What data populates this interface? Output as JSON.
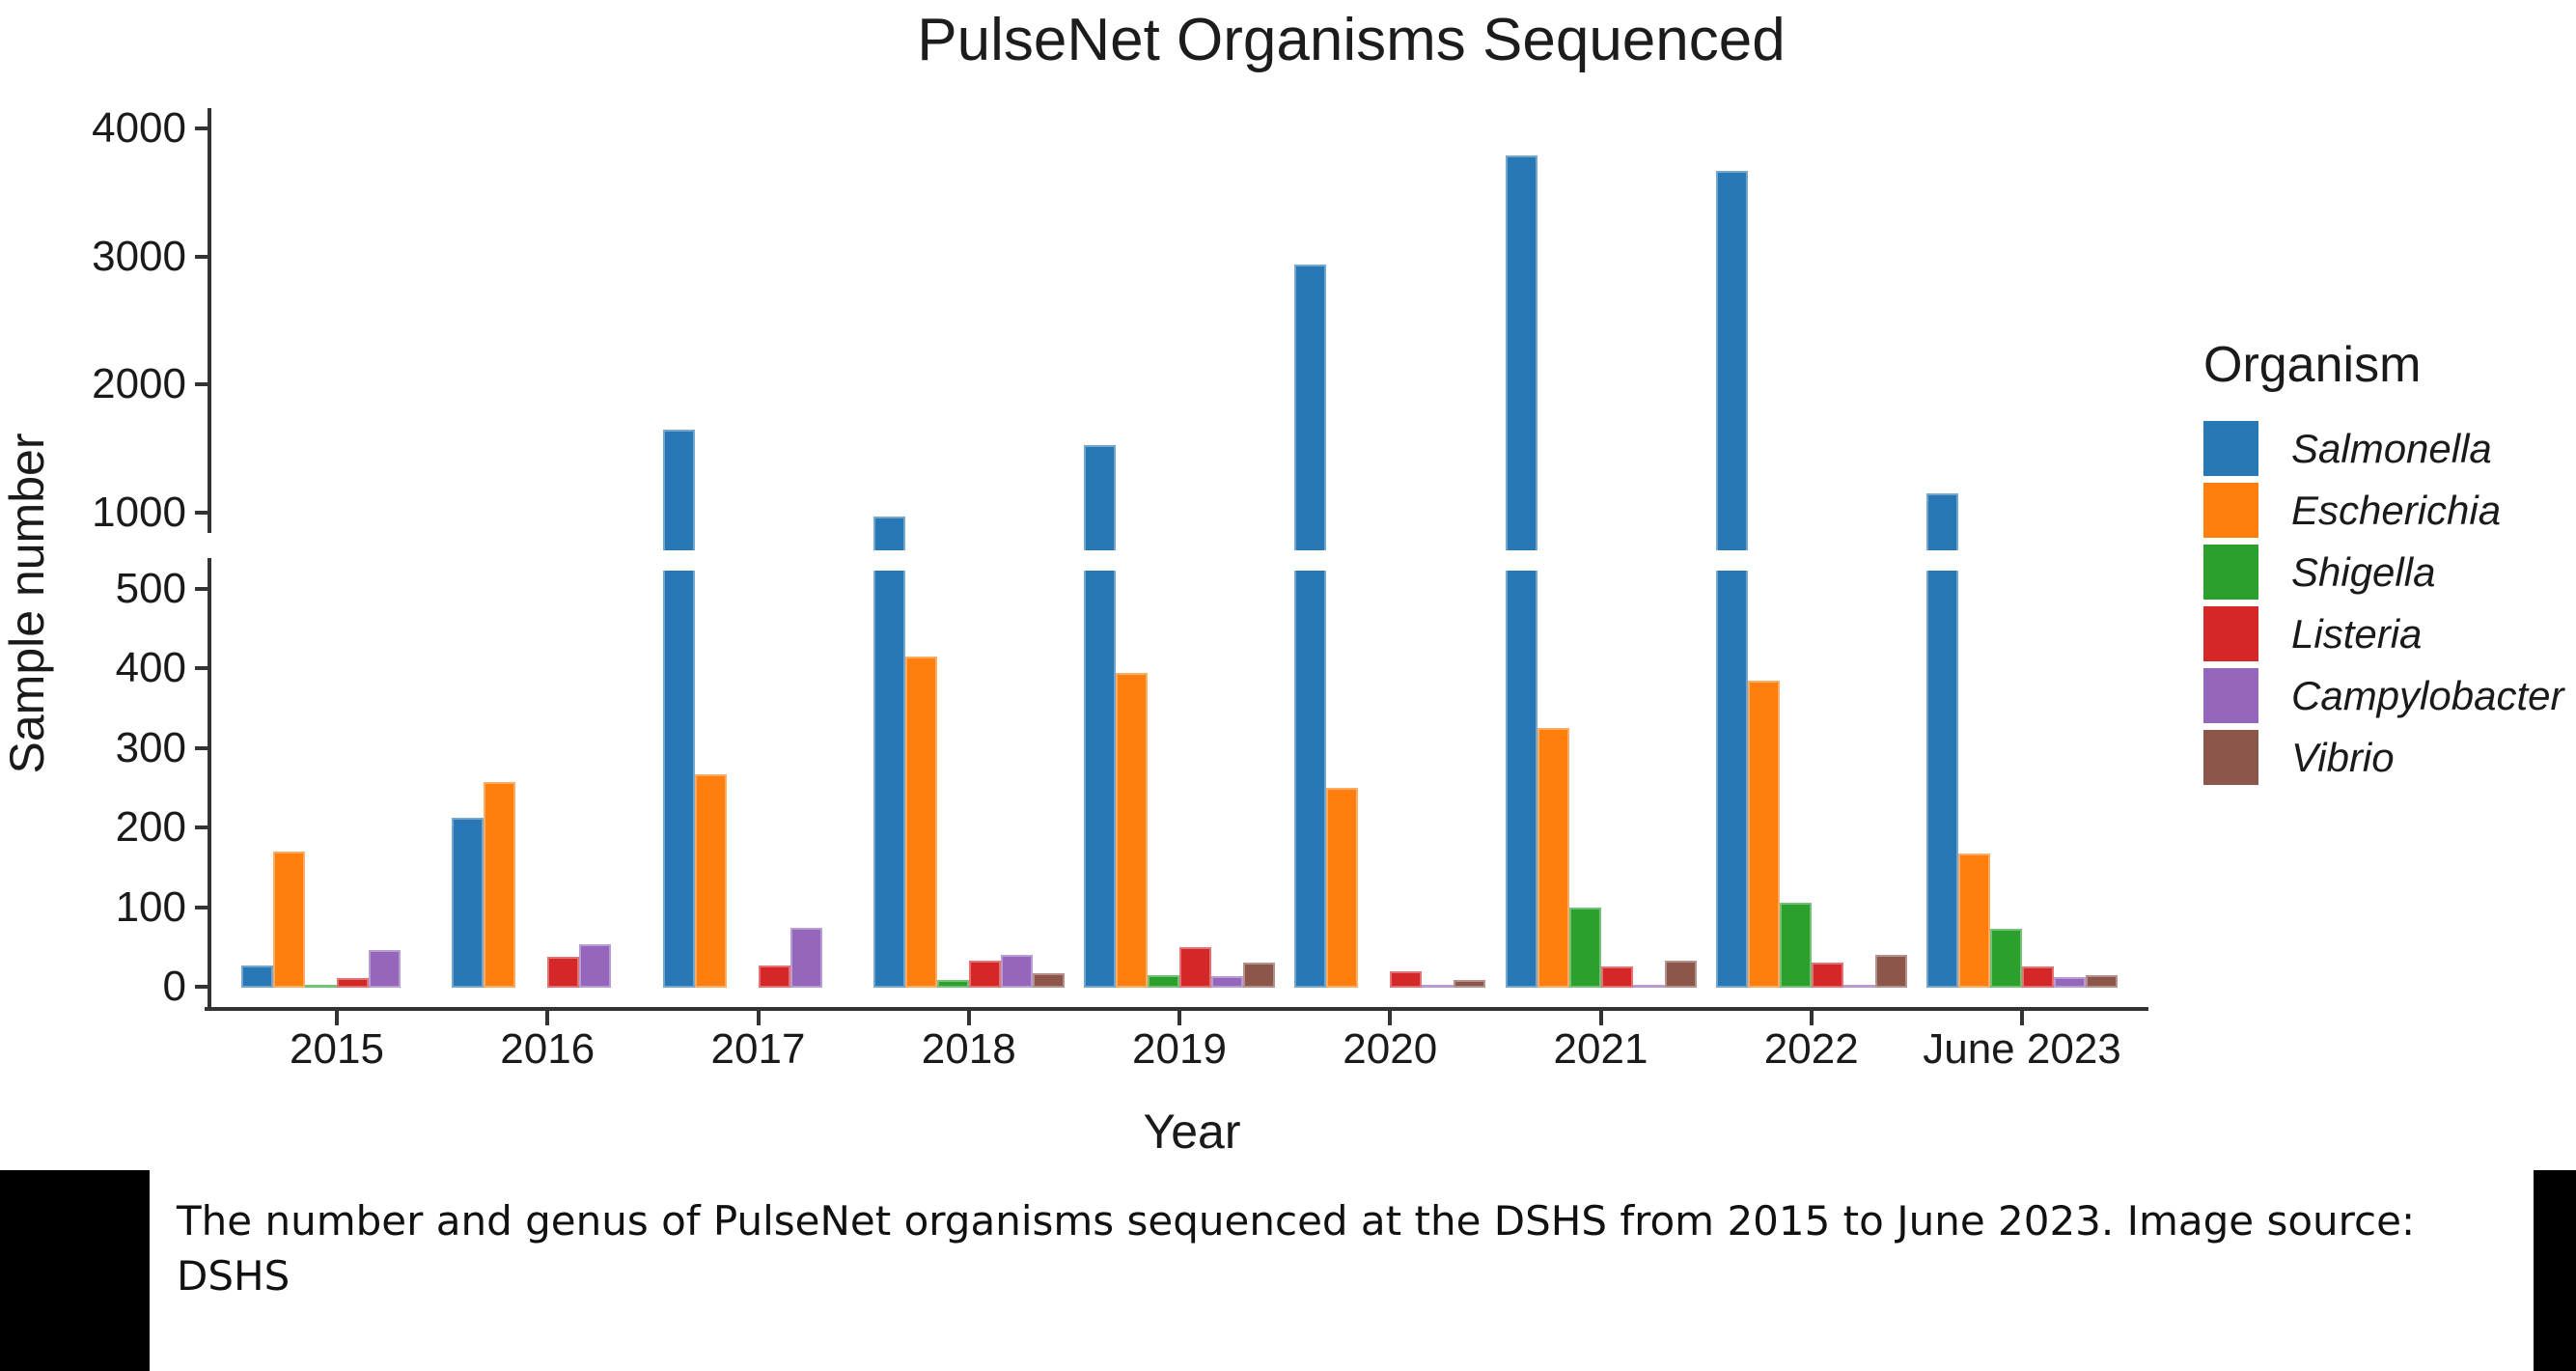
{
  "title": "PulseNet Organisms Sequenced",
  "axes": {
    "x_label": "Year",
    "y_label": "Sample number"
  },
  "legend": {
    "title": "Organism",
    "position": "right"
  },
  "caption": "The number and genus of PulseNet organisms sequenced at the DSHS from 2015 to June 2023. Image source: DSHS",
  "chart_data": {
    "type": "bar",
    "title": "PulseNet Organisms Sequenced",
    "xlabel": "Year",
    "ylabel": "Sample number",
    "categories": [
      "2015",
      "2016",
      "2017",
      "2018",
      "2019",
      "2020",
      "2021",
      "2022",
      "June 2023"
    ],
    "series": [
      {
        "name": "Salmonella",
        "color": "#2878b5",
        "values": [
          27,
          212,
          1650,
          970,
          1530,
          2940,
          3790,
          3670,
          1150
        ]
      },
      {
        "name": "Escherichia",
        "color": "#ff7f0e",
        "values": [
          170,
          257,
          267,
          415,
          395,
          250,
          325,
          385,
          168
        ]
      },
      {
        "name": "Shigella",
        "color": "#2ca02c",
        "values": [
          3,
          0,
          0,
          8,
          15,
          0,
          100,
          105,
          73
        ]
      },
      {
        "name": "Listeria",
        "color": "#d62728",
        "values": [
          11,
          38,
          27,
          33,
          50,
          20,
          26,
          30,
          25
        ]
      },
      {
        "name": "Campylobacter",
        "color": "#9467bd",
        "values": [
          46,
          54,
          74,
          40,
          13,
          3,
          3,
          3,
          12
        ]
      },
      {
        "name": "Vibrio",
        "color": "#8c564b",
        "values": [
          0,
          0,
          0,
          17,
          30,
          8,
          33,
          40,
          15
        ]
      }
    ],
    "y_axis": {
      "lower_ticks": [
        0,
        100,
        200,
        300,
        400,
        500
      ],
      "upper_ticks": [
        1000,
        2000,
        3000,
        4000
      ],
      "break_between": [
        525,
        705
      ],
      "ylim": [
        0,
        4000
      ]
    },
    "legend_title": "Organism",
    "legend_position": "right",
    "grid": false
  }
}
